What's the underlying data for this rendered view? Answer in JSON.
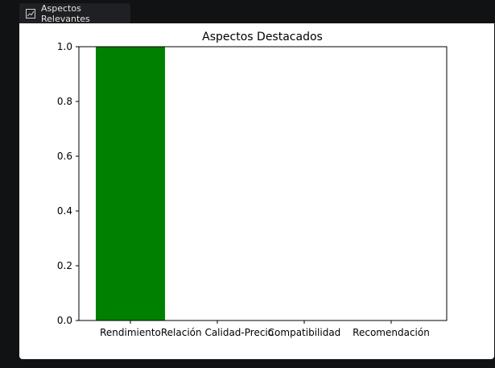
{
  "window": {
    "tab_title": "Aspectos Relevantes",
    "tab_icon": "chart-icon"
  },
  "colors": {
    "bar": "#008000",
    "axis": "#000000",
    "page_bg": "#111214",
    "panel_bg": "#ffffff"
  },
  "chart_data": {
    "type": "bar",
    "title": "Aspectos Destacados",
    "categories": [
      "Rendimiento",
      "Relación Calidad-Precio",
      "Compatibilidad",
      "Recomendación"
    ],
    "values": [
      1.0,
      0.0,
      0.0,
      0.0
    ],
    "ylim": [
      0.0,
      1.0
    ],
    "yticks": [
      "0.0",
      "0.2",
      "0.4",
      "0.6",
      "0.8",
      "1.0"
    ],
    "xlabel": "",
    "ylabel": "",
    "grid": false,
    "legend": "none"
  }
}
